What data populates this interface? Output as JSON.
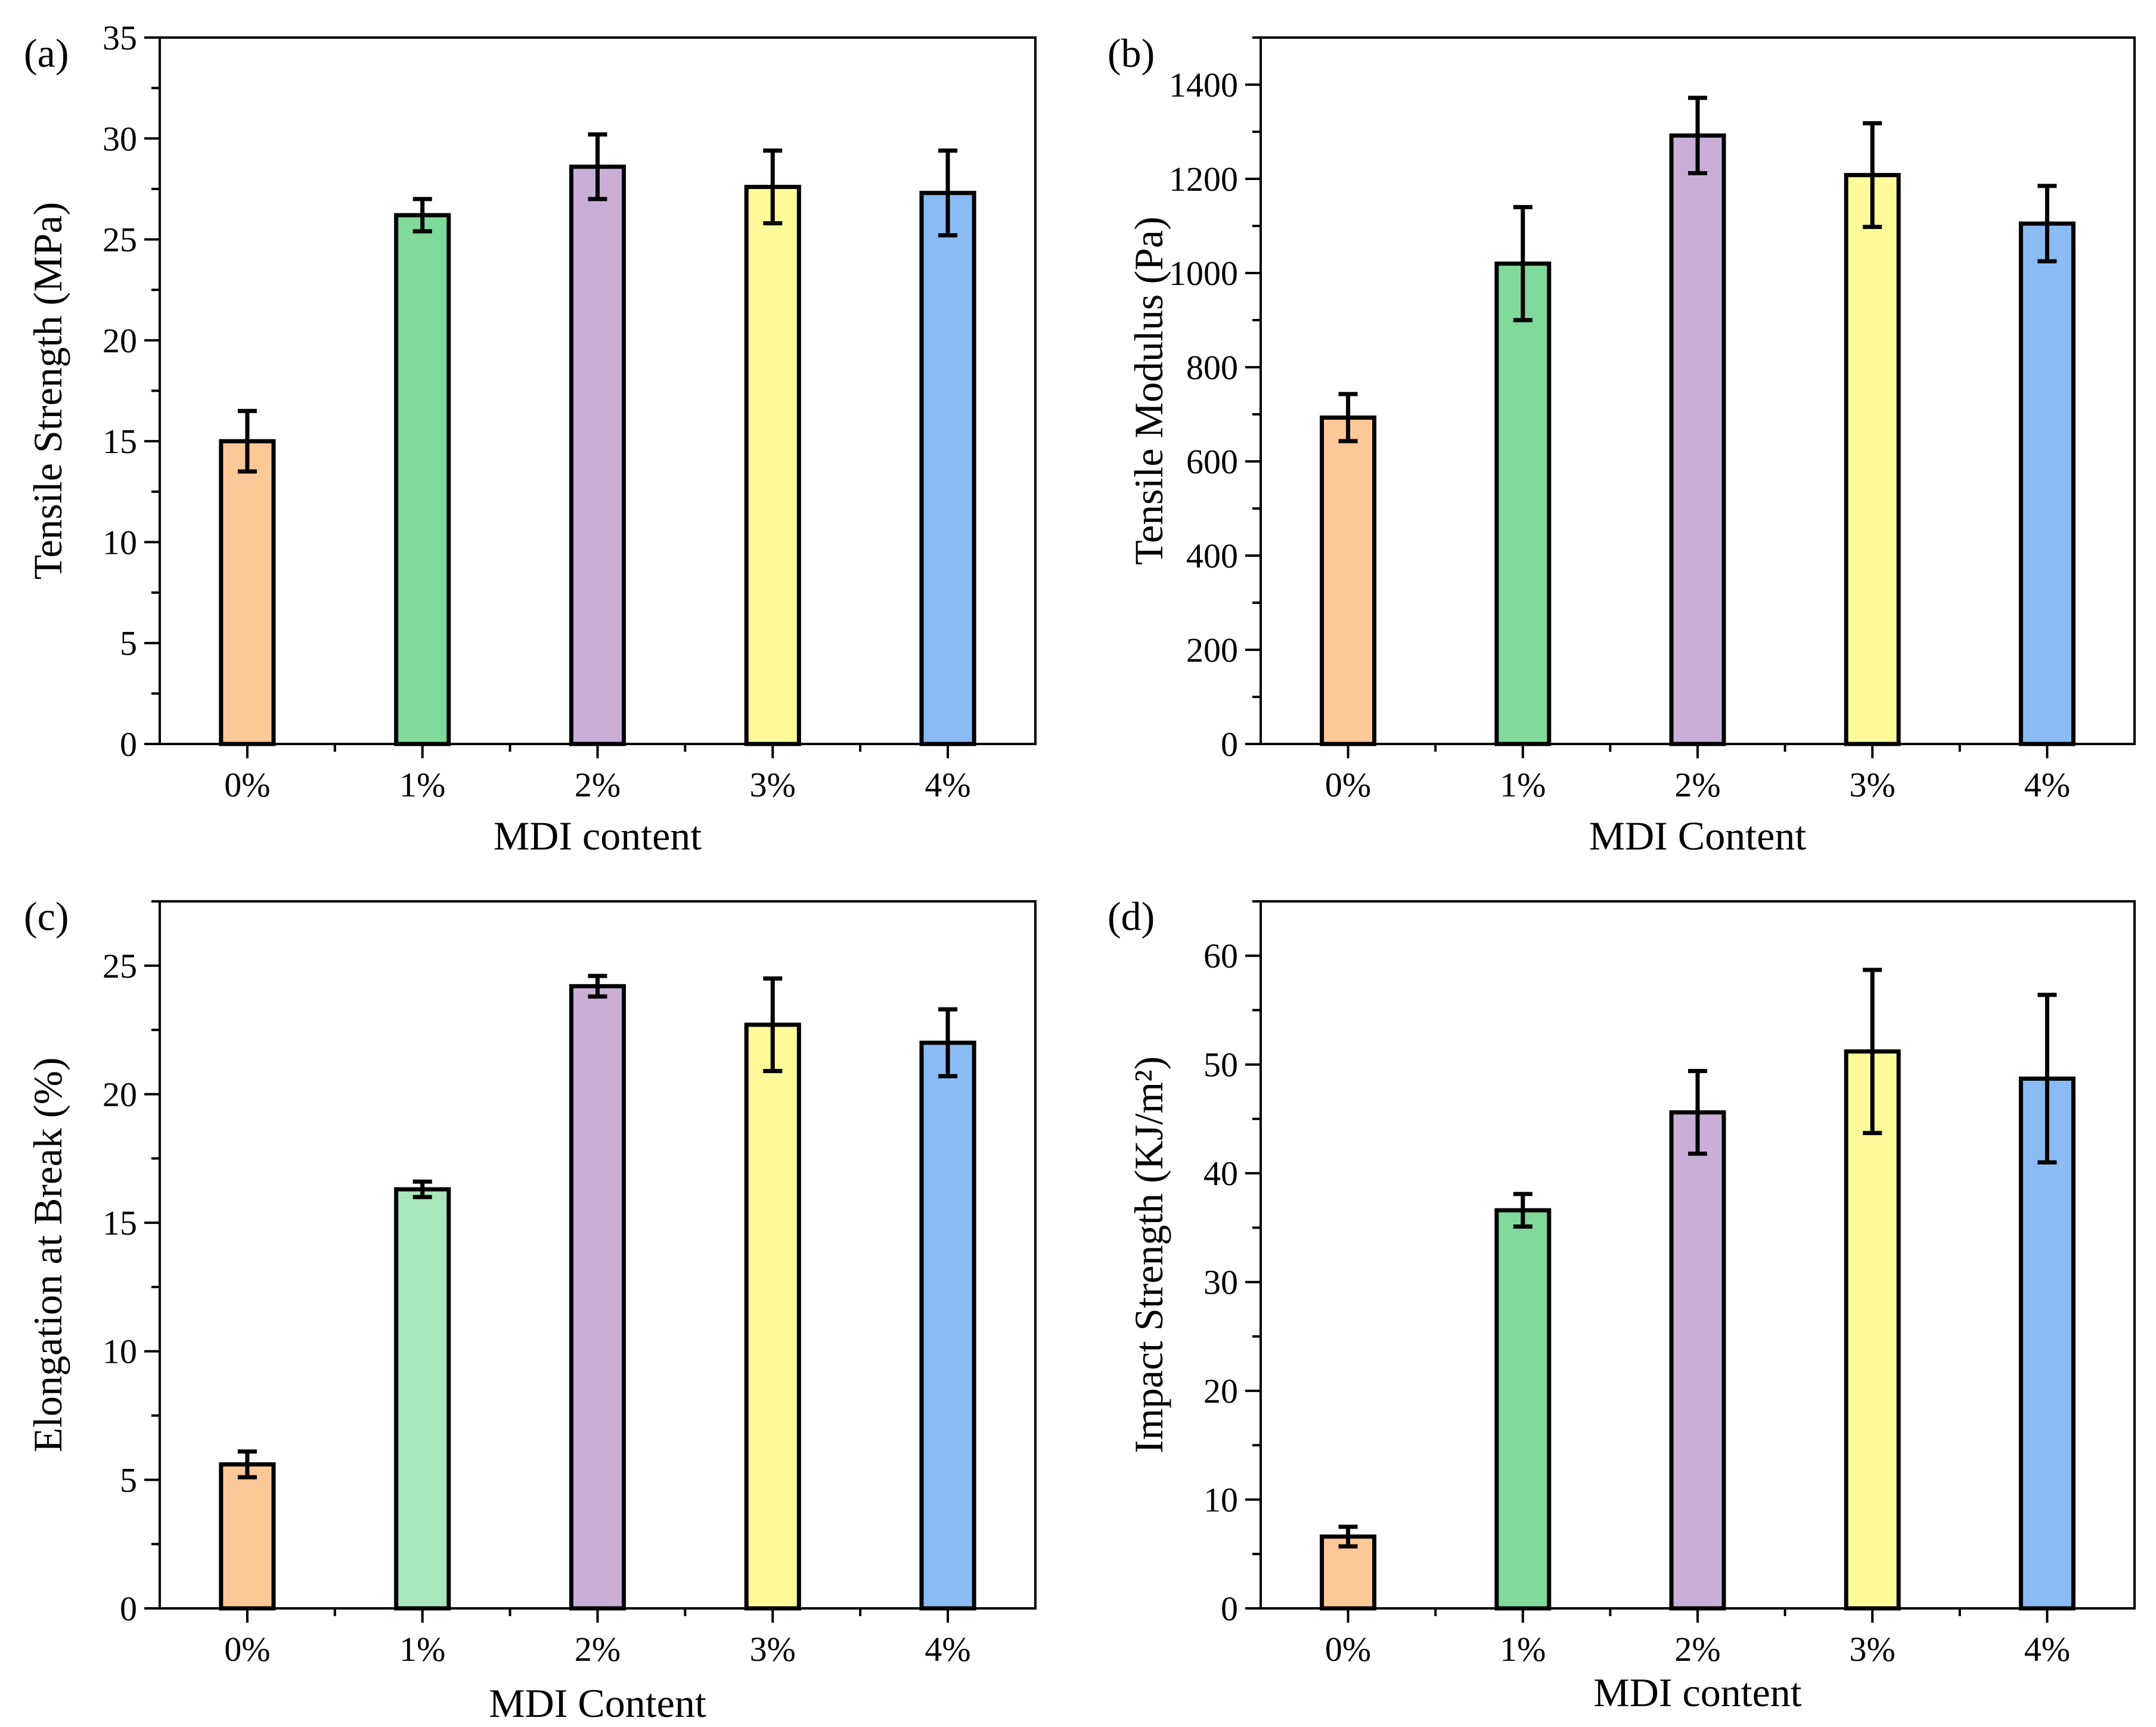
{
  "chart_data": [
    {
      "type": "bar",
      "panel": "(a)",
      "categories": [
        "0%",
        "1%",
        "2%",
        "3%",
        "4%"
      ],
      "values": [
        15.0,
        26.2,
        28.6,
        27.6,
        27.3
      ],
      "errors": [
        1.5,
        0.8,
        1.6,
        1.8,
        2.1
      ],
      "colors": [
        "#FDC897",
        "#7FD99A",
        "#C9AFD8",
        "#FFFA99",
        "#8BBBF5"
      ],
      "xlabel": "MDI content",
      "ylabel": "Tensile Strength (MPa)",
      "ylim": [
        0,
        35
      ],
      "yticks": [
        "0",
        "5",
        "10",
        "15",
        "20",
        "25",
        "30",
        "35"
      ],
      "ytick_values": [
        0,
        5,
        10,
        15,
        20,
        25,
        30,
        35
      ],
      "yminor": 2.5
    },
    {
      "type": "bar",
      "panel": "(b)",
      "categories": [
        "0%",
        "1%",
        "2%",
        "3%",
        "4%"
      ],
      "values": [
        693,
        1020,
        1292,
        1208,
        1105
      ],
      "errors": [
        50,
        120,
        80,
        110,
        80
      ],
      "colors": [
        "#FDC897",
        "#7FD99A",
        "#C9AFD8",
        "#FFFA99",
        "#8BBBF5"
      ],
      "xlabel": "MDI Content",
      "ylabel": "Tensile Modulus (Pa)",
      "ylim": [
        0,
        1500
      ],
      "yticks": [
        "0",
        "200",
        "400",
        "600",
        "800",
        "1000",
        "1200",
        "1400"
      ],
      "ytick_values": [
        0,
        200,
        400,
        600,
        800,
        1000,
        1200,
        1400
      ],
      "yminor": 100
    },
    {
      "type": "bar",
      "panel": "(c)",
      "categories": [
        "0%",
        "1%",
        "2%",
        "3%",
        "4%"
      ],
      "values": [
        5.6,
        16.3,
        24.2,
        22.7,
        22.0
      ],
      "errors": [
        0.5,
        0.3,
        0.4,
        1.8,
        1.3
      ],
      "colors": [
        "#FDC897",
        "#A9E6BC",
        "#C9AFD8",
        "#FFFA99",
        "#8BBBF5"
      ],
      "xlabel": "MDI Content",
      "ylabel": "Elongation at Break (%)",
      "ylim": [
        0,
        27.5
      ],
      "yticks": [
        "0",
        "5",
        "10",
        "15",
        "20",
        "25"
      ],
      "ytick_values": [
        0,
        5,
        10,
        15,
        20,
        25
      ],
      "yminor": 2.5
    },
    {
      "type": "bar",
      "panel": "(d)",
      "categories": [
        "0%",
        "1%",
        "2%",
        "3%",
        "4%"
      ],
      "values": [
        6.6,
        36.6,
        45.6,
        51.2,
        48.7
      ],
      "errors": [
        0.9,
        1.5,
        3.8,
        7.5,
        7.7
      ],
      "colors": [
        "#FDC897",
        "#7FD99A",
        "#C9AFD8",
        "#FFFA99",
        "#8BBBF5"
      ],
      "xlabel": "MDI content",
      "ylabel": "Impact Strength (KJ/m²)",
      "ylim": [
        0,
        65
      ],
      "yticks": [
        "0",
        "10",
        "20",
        "30",
        "40",
        "50",
        "60"
      ],
      "ytick_values": [
        0,
        10,
        20,
        30,
        40,
        50,
        60
      ],
      "yminor": 5
    }
  ]
}
